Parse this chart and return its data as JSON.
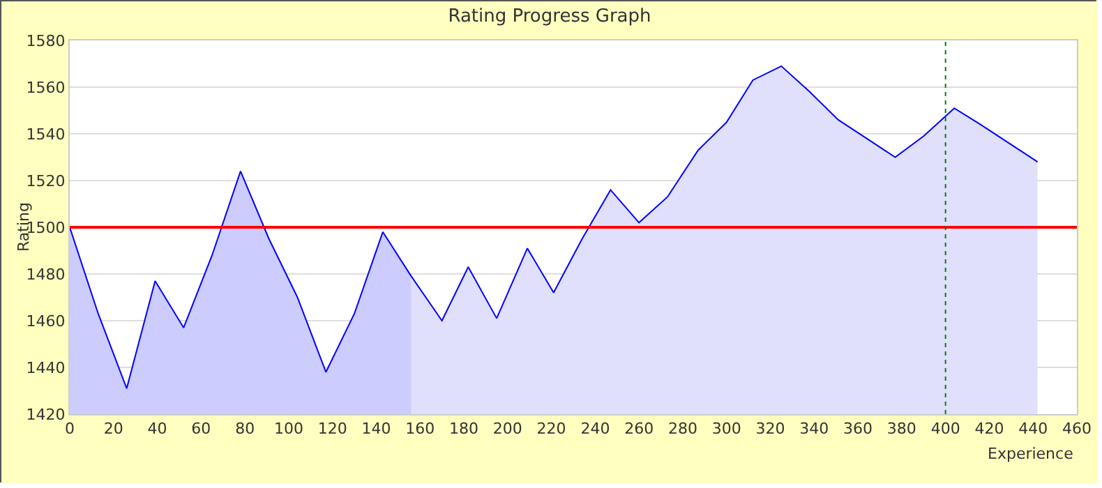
{
  "chart_data": {
    "type": "area",
    "title": "Rating Progress Graph",
    "xlabel": "Experience",
    "ylabel": "Rating",
    "series": [
      {
        "color": "#ccccff",
        "x": [
          0,
          13,
          26,
          39,
          52,
          65,
          78,
          91,
          104,
          117,
          130,
          143,
          156
        ],
        "values": [
          1500,
          1463,
          1431,
          1477,
          1457,
          1488,
          1524,
          1495,
          1470,
          1438,
          1463,
          1498,
          1479
        ]
      },
      {
        "color": "#e0e0fc",
        "x": [
          156,
          170,
          182,
          195,
          209,
          221,
          234,
          247,
          260,
          273,
          287,
          300,
          312,
          325,
          338,
          351,
          364,
          377,
          390,
          404,
          416,
          429,
          442
        ],
        "values": [
          1479,
          1460,
          1483,
          1461,
          1491,
          1472,
          1495,
          1516,
          1502,
          1513,
          1533,
          1545,
          1563,
          1569,
          1558,
          1546,
          1538,
          1530,
          1539,
          1551,
          1544,
          1536,
          1528
        ]
      }
    ],
    "xlim": [
      0,
      460
    ],
    "xticks": [
      0,
      20,
      40,
      60,
      80,
      100,
      120,
      140,
      160,
      180,
      200,
      220,
      240,
      260,
      280,
      300,
      320,
      340,
      360,
      380,
      400,
      420,
      440,
      460
    ],
    "ylim": [
      1420,
      1580
    ],
    "yticks": [
      1420,
      1440,
      1460,
      1480,
      1500,
      1520,
      1540,
      1560,
      1580
    ],
    "grid": "y",
    "ref_lines": [
      {
        "axis": "y",
        "value": 1500,
        "color": "#ff0000",
        "line_style": "solid"
      },
      {
        "axis": "x",
        "value": 400,
        "color": "#008000",
        "line_style": "dotted"
      }
    ]
  }
}
